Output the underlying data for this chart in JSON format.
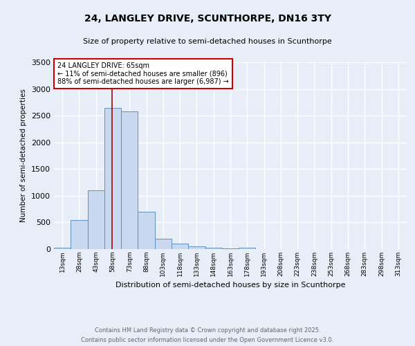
{
  "title1": "24, LANGLEY DRIVE, SCUNTHORPE, DN16 3TY",
  "title2": "Size of property relative to semi-detached houses in Scunthorpe",
  "xlabel": "Distribution of semi-detached houses by size in Scunthorpe",
  "ylabel": "Number of semi-detached properties",
  "bin_labels": [
    "13sqm",
    "28sqm",
    "43sqm",
    "58sqm",
    "73sqm",
    "88sqm",
    "103sqm",
    "118sqm",
    "133sqm",
    "148sqm",
    "163sqm",
    "178sqm",
    "193sqm",
    "208sqm",
    "223sqm",
    "238sqm",
    "253sqm",
    "268sqm",
    "283sqm",
    "298sqm",
    "313sqm"
  ],
  "bin_left_edges": [
    13,
    28,
    43,
    58,
    73,
    88,
    103,
    118,
    133,
    148,
    163,
    178,
    193,
    208,
    223,
    238,
    253,
    268,
    283,
    298,
    313
  ],
  "bin_width": 15,
  "bar_heights": [
    30,
    550,
    1100,
    2650,
    2580,
    700,
    200,
    100,
    50,
    30,
    15,
    30,
    5,
    0,
    0,
    0,
    0,
    0,
    0,
    0,
    0
  ],
  "bar_color": "#c8d8ee",
  "bar_edge_color": "#6090c0",
  "red_line_x": 65,
  "annotation_line1": "24 LANGLEY DRIVE: 65sqm",
  "annotation_line2": "← 11% of semi-detached houses are smaller (896)",
  "annotation_line3": "88% of semi-detached houses are larger (6,987) →",
  "annotation_box_color": "#ffffff",
  "annotation_border_color": "#cc0000",
  "ylim": [
    0,
    3500
  ],
  "yticks": [
    0,
    500,
    1000,
    1500,
    2000,
    2500,
    3000,
    3500
  ],
  "xlim_left": 13,
  "xlim_right": 328,
  "footnote1": "Contains HM Land Registry data © Crown copyright and database right 2025.",
  "footnote2": "Contains public sector information licensed under the Open Government Licence v3.0.",
  "bg_color": "#e8eef8",
  "outer_bg_color": "#e8eef8",
  "grid_color": "#ffffff"
}
